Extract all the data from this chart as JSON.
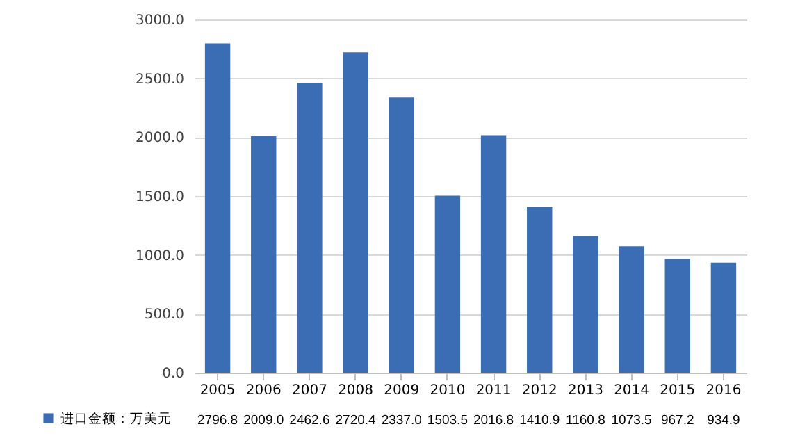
{
  "chart_data": {
    "type": "bar",
    "categories": [
      "2005",
      "2006",
      "2007",
      "2008",
      "2009",
      "2010",
      "2011",
      "2012",
      "2013",
      "2014",
      "2015",
      "2016"
    ],
    "series": [
      {
        "name": "进口金额：万美元",
        "color": "#3a6db3",
        "values": [
          2796.8,
          2009.0,
          2462.6,
          2720.4,
          2337.0,
          1503.5,
          2016.8,
          1410.9,
          1160.8,
          1073.5,
          967.2,
          934.9
        ],
        "value_labels": [
          "2796.8",
          "2009.0",
          "2462.6",
          "2720.4",
          "2337.0",
          "1503.5",
          "2016.8",
          "1410.9",
          "1160.8",
          "1073.5",
          "967.2",
          "934.9"
        ]
      }
    ],
    "ylim": [
      0,
      3000
    ],
    "yticks": [
      {
        "value": 0,
        "label": "0.0"
      },
      {
        "value": 500,
        "label": "500.0"
      },
      {
        "value": 1000,
        "label": "1000.0"
      },
      {
        "value": 1500,
        "label": "1500.0"
      },
      {
        "value": 2000,
        "label": "2000.0"
      },
      {
        "value": 2500,
        "label": "2500.0"
      },
      {
        "value": 3000,
        "label": "3000.0"
      }
    ],
    "grid": "y",
    "legend": "bottom left",
    "data_labels": true
  }
}
